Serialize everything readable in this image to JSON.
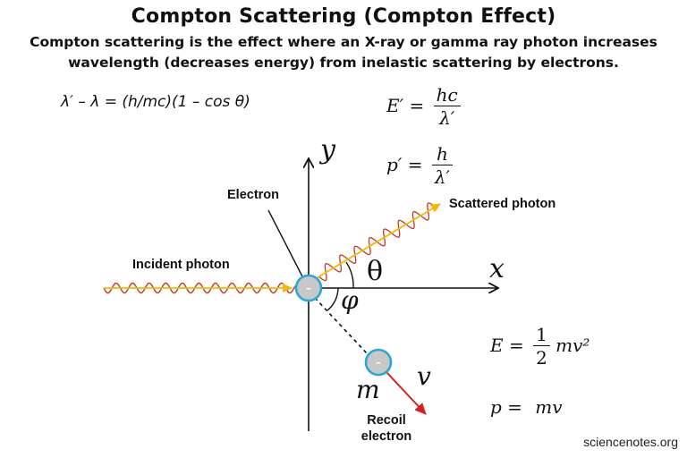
{
  "title": "Compton Scattering (Compton Effect)",
  "subtitle_line1": "Compton scattering is the effect where an X-ray or gamma ray photon increases",
  "subtitle_line2": "wavelength (decreases energy) from inelastic scattering by electrons.",
  "compton_formula": "λ′ – λ = (h/mc)(1 – cos θ)",
  "energy_formula": {
    "lhs": "E′ =",
    "numerator": "hc",
    "denominator": "λ′"
  },
  "momentum_formula": {
    "lhs": "p′ =",
    "numerator": "h",
    "denominator": "λ′"
  },
  "kinetic_energy_formula": {
    "lhs": "E =",
    "numerator": "1",
    "denominator": "2",
    "rhs": "mv²"
  },
  "recoil_momentum_formula": {
    "lhs": "p =",
    "rhs": "mv"
  },
  "labels": {
    "electron": "Electron",
    "incident_photon": "Incident photon",
    "scattered_photon": "Scattered photon",
    "recoil_line1": "Recoil",
    "recoil_line2": "electron"
  },
  "symbols": {
    "y_axis": "y",
    "x_axis": "x",
    "theta": "θ",
    "phi": "φ",
    "mass": "m",
    "velocity": "v",
    "electron_charge": "–"
  },
  "credit": "sciencenotes.org",
  "colors": {
    "photon_wave": "#c0392b",
    "photon_arrow": "#f5b800",
    "recoil_arrow": "#d62020",
    "electron_ring": "#29a8d8",
    "electron_fill": "#c8c8c8"
  }
}
